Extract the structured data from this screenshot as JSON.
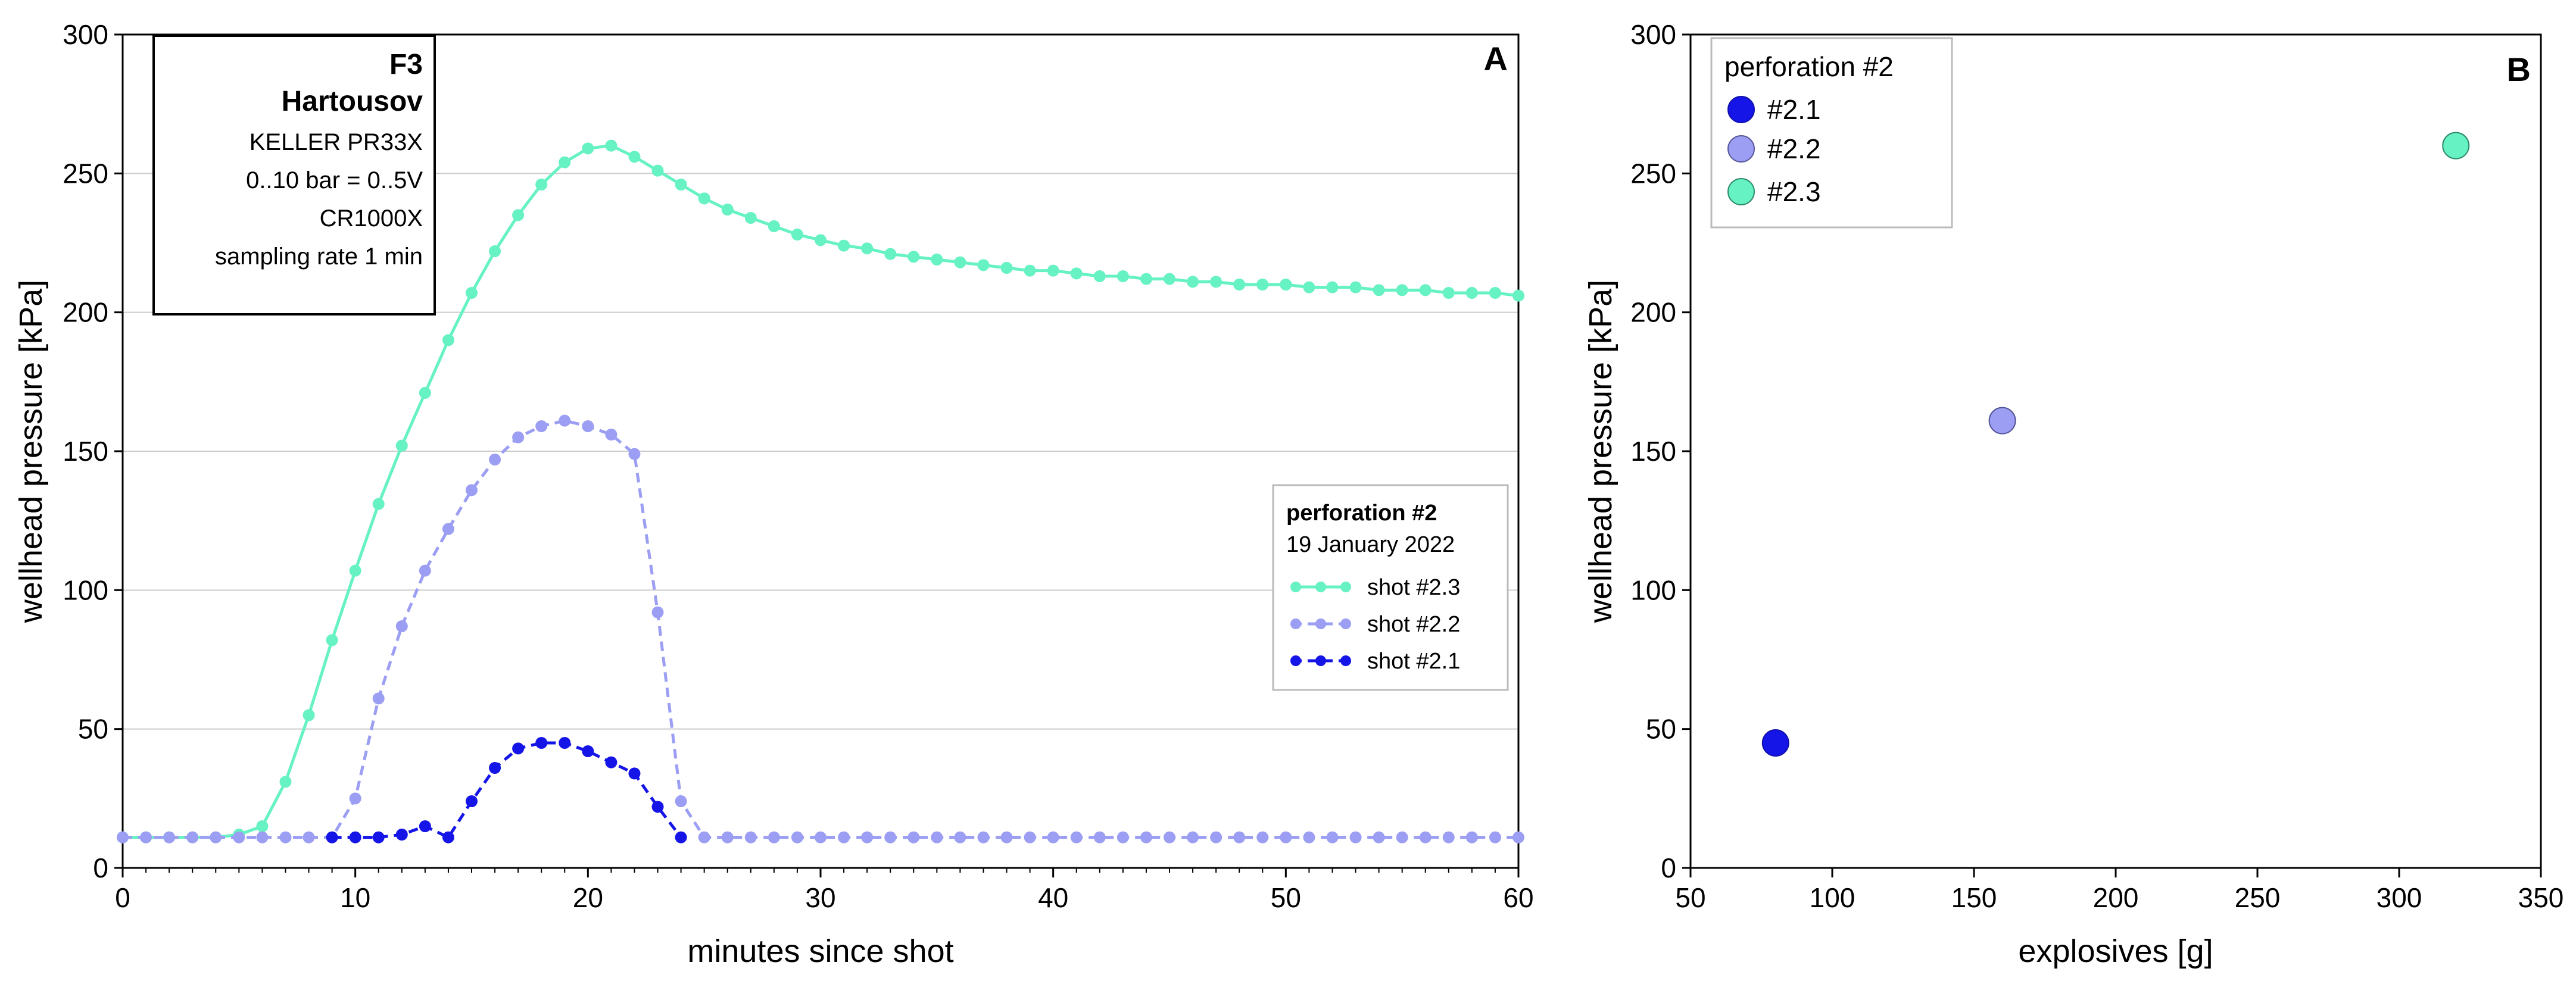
{
  "chart_data": [
    {
      "panel": "A",
      "type": "line",
      "xlabel": "minutes since shot",
      "ylabel": "wellhead pressure [kPa]",
      "xlim": [
        0,
        60
      ],
      "ylim": [
        0,
        300
      ],
      "xticks": [
        0,
        10,
        20,
        30,
        40,
        50,
        60
      ],
      "yticks": [
        0,
        50,
        100,
        150,
        200,
        250,
        300
      ],
      "grid": "horizontal",
      "info_box": {
        "title": "F3",
        "site": "Hartousov",
        "lines": [
          "KELLER PR33X",
          "0..10 bar = 0..5V",
          "CR1000X",
          "sampling rate 1 min"
        ]
      },
      "legend": {
        "placement": "right",
        "title": "perforation #2",
        "subtitle": "19 January 2022"
      },
      "series": [
        {
          "name": "shot #2.3",
          "color": "#66f2c2",
          "dashed": false,
          "x": [
            0,
            1,
            2,
            3,
            4,
            5,
            6,
            7,
            8,
            9,
            10,
            11,
            12,
            13,
            14,
            15,
            16,
            17,
            18,
            19,
            20,
            21,
            22,
            23,
            24,
            25,
            26,
            27,
            28,
            29,
            30,
            31,
            32,
            33,
            34,
            35,
            36,
            37,
            38,
            39,
            40,
            41,
            42,
            43,
            44,
            45,
            46,
            47,
            48,
            49,
            50,
            51,
            52,
            53,
            54,
            55,
            56,
            57,
            58,
            59,
            60
          ],
          "y": [
            11,
            11,
            11,
            11,
            11,
            12,
            15,
            31,
            55,
            82,
            107,
            131,
            152,
            171,
            190,
            207,
            222,
            235,
            246,
            254,
            259,
            260,
            256,
            251,
            246,
            241,
            237,
            234,
            231,
            228,
            226,
            224,
            223,
            221,
            220,
            219,
            218,
            217,
            216,
            215,
            215,
            214,
            213,
            213,
            212,
            212,
            211,
            211,
            210,
            210,
            210,
            209,
            209,
            209,
            208,
            208,
            208,
            207,
            207,
            207,
            206
          ]
        },
        {
          "name": "shot #2.2",
          "color": "#9b9ef2",
          "dashed": true,
          "x": [
            0,
            1,
            2,
            3,
            4,
            5,
            6,
            7,
            8,
            9,
            10,
            11,
            12,
            13,
            14,
            15,
            16,
            17,
            18,
            19,
            20,
            21,
            22,
            23,
            24,
            25,
            26,
            27,
            28,
            29,
            30,
            31,
            32,
            33,
            34,
            35,
            36,
            37,
            38,
            39,
            40,
            41,
            42,
            43,
            44,
            45,
            46,
            47,
            48,
            49,
            50,
            51,
            52,
            53,
            54,
            55,
            56,
            57,
            58,
            59,
            60
          ],
          "y": [
            11,
            11,
            11,
            11,
            11,
            11,
            11,
            11,
            11,
            11,
            25,
            61,
            87,
            107,
            122,
            136,
            147,
            155,
            159,
            161,
            159,
            156,
            149,
            92,
            24,
            11,
            11,
            11,
            11,
            11,
            11,
            11,
            11,
            11,
            11,
            11,
            11,
            11,
            11,
            11,
            11,
            11,
            11,
            11,
            11,
            11,
            11,
            11,
            11,
            11,
            11,
            11,
            11,
            11,
            11,
            11,
            11,
            11,
            11,
            11,
            11
          ]
        },
        {
          "name": "shot #2.1",
          "color": "#1515e8",
          "dashed": true,
          "x": [
            9,
            10,
            11,
            12,
            13,
            14,
            15,
            16,
            17,
            18,
            19,
            20,
            21,
            22,
            23,
            24
          ],
          "y": [
            11,
            11,
            11,
            12,
            15,
            11,
            24,
            36,
            43,
            45,
            45,
            42,
            38,
            34,
            22,
            11
          ]
        }
      ]
    },
    {
      "panel": "B",
      "type": "scatter",
      "xlabel": "explosives [g]",
      "ylabel": "wellhead pressure [kPa]",
      "xlim": [
        50,
        350
      ],
      "ylim": [
        0,
        300
      ],
      "xticks": [
        50,
        100,
        150,
        200,
        250,
        300,
        350
      ],
      "yticks": [
        0,
        50,
        100,
        150,
        200,
        250,
        300
      ],
      "grid": "none",
      "legend": {
        "placement": "top-left",
        "title": "perforation #2"
      },
      "series": [
        {
          "name": "#2.1",
          "color": "#1515e8",
          "x": [
            80
          ],
          "y": [
            45
          ]
        },
        {
          "name": "#2.2",
          "color": "#9b9ef2",
          "x": [
            160
          ],
          "y": [
            161
          ]
        },
        {
          "name": "#2.3",
          "color": "#66f2c2",
          "x": [
            320
          ],
          "y": [
            260
          ]
        }
      ]
    }
  ]
}
